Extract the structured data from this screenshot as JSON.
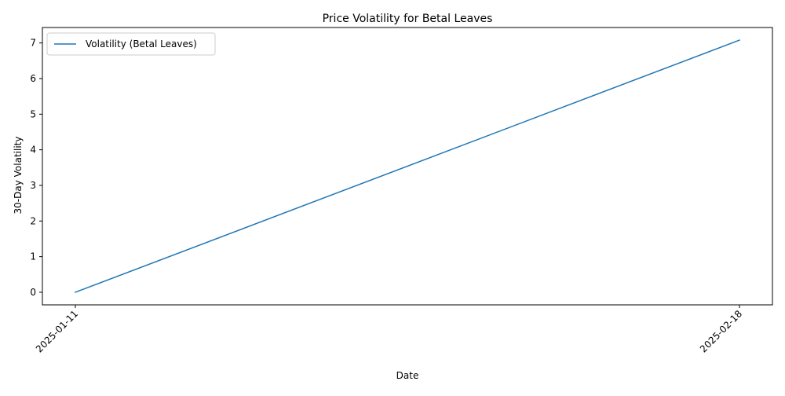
{
  "chart_data": {
    "type": "line",
    "title": "Price Volatility for Betal Leaves",
    "xlabel": "Date",
    "ylabel": "30-Day Volatility",
    "x": [
      "2025-01-11",
      "2025-02-18"
    ],
    "series": [
      {
        "name": "Volatility (Betal Leaves)",
        "values": [
          0,
          7.08
        ],
        "color": "#1f77b4"
      }
    ],
    "x_ticks": [
      "2025-01-11",
      "2025-02-18"
    ],
    "y_ticks": [
      0,
      1,
      2,
      3,
      4,
      5,
      6,
      7
    ],
    "ylim": [
      -0.354,
      7.434
    ],
    "grid": false,
    "legend": "top-left"
  }
}
